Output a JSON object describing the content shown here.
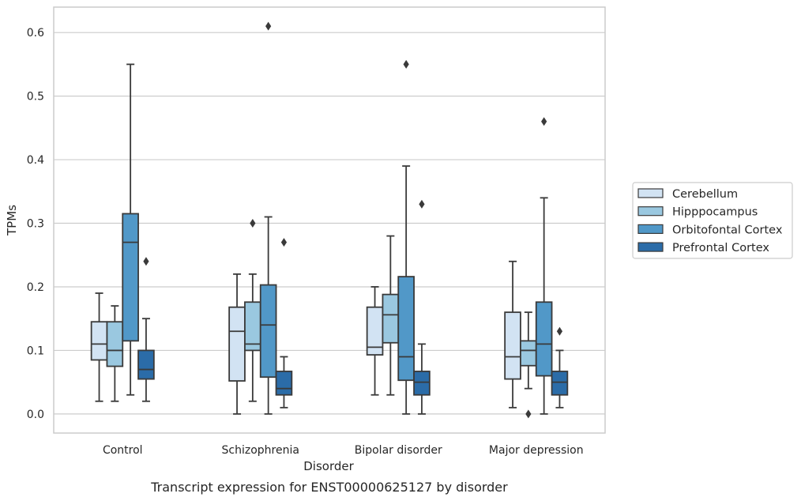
{
  "chart_data": {
    "type": "box",
    "title": "",
    "caption": "Transcript expression for ENST00000625127 by disorder",
    "xlabel": "Disorder",
    "ylabel": "TPMs",
    "ylim": [
      -0.03,
      0.64
    ],
    "yticks": [
      "0.0",
      "0.1",
      "0.2",
      "0.3",
      "0.4",
      "0.5",
      "0.6"
    ],
    "grid": true,
    "legend_position": "right",
    "categories": [
      "Control",
      "Schizophrenia",
      "Bipolar disorder",
      "Major depression"
    ],
    "series": [
      {
        "name": "Cerebellum",
        "color": "#d2e3f3",
        "boxes": [
          {
            "q1": 0.085,
            "median": 0.11,
            "q3": 0.145,
            "whisker_low": 0.02,
            "whisker_high": 0.19,
            "outliers": []
          },
          {
            "q1": 0.052,
            "median": 0.13,
            "q3": 0.168,
            "whisker_low": 0.0,
            "whisker_high": 0.22,
            "outliers": []
          },
          {
            "q1": 0.093,
            "median": 0.105,
            "q3": 0.168,
            "whisker_low": 0.03,
            "whisker_high": 0.2,
            "outliers": []
          },
          {
            "q1": 0.055,
            "median": 0.09,
            "q3": 0.16,
            "whisker_low": 0.01,
            "whisker_high": 0.24,
            "outliers": []
          }
        ]
      },
      {
        "name": "Hipppocampus",
        "color": "#9ac8e0",
        "boxes": [
          {
            "q1": 0.075,
            "median": 0.1,
            "q3": 0.145,
            "whisker_low": 0.02,
            "whisker_high": 0.17,
            "outliers": []
          },
          {
            "q1": 0.1,
            "median": 0.11,
            "q3": 0.176,
            "whisker_low": 0.02,
            "whisker_high": 0.22,
            "outliers": [
              0.3
            ]
          },
          {
            "q1": 0.112,
            "median": 0.156,
            "q3": 0.188,
            "whisker_low": 0.03,
            "whisker_high": 0.28,
            "outliers": []
          },
          {
            "q1": 0.076,
            "median": 0.1,
            "q3": 0.115,
            "whisker_low": 0.04,
            "whisker_high": 0.16,
            "outliers": [
              0.0
            ]
          }
        ]
      },
      {
        "name": "Orbitofontal Cortex",
        "color": "#5198c8",
        "boxes": [
          {
            "q1": 0.115,
            "median": 0.27,
            "q3": 0.315,
            "whisker_low": 0.03,
            "whisker_high": 0.55,
            "outliers": []
          },
          {
            "q1": 0.058,
            "median": 0.14,
            "q3": 0.203,
            "whisker_low": 0.0,
            "whisker_high": 0.31,
            "outliers": [
              0.61
            ]
          },
          {
            "q1": 0.053,
            "median": 0.09,
            "q3": 0.216,
            "whisker_low": 0.0,
            "whisker_high": 0.39,
            "outliers": [
              0.55
            ]
          },
          {
            "q1": 0.06,
            "median": 0.11,
            "q3": 0.176,
            "whisker_low": 0.0,
            "whisker_high": 0.34,
            "outliers": [
              0.46
            ]
          }
        ]
      },
      {
        "name": "Prefrontal Cortex",
        "color": "#2b6ca8",
        "boxes": [
          {
            "q1": 0.055,
            "median": 0.07,
            "q3": 0.1,
            "whisker_low": 0.02,
            "whisker_high": 0.15,
            "outliers": [
              0.24
            ]
          },
          {
            "q1": 0.03,
            "median": 0.04,
            "q3": 0.067,
            "whisker_low": 0.01,
            "whisker_high": 0.09,
            "outliers": [
              0.27
            ]
          },
          {
            "q1": 0.03,
            "median": 0.05,
            "q3": 0.067,
            "whisker_low": 0.0,
            "whisker_high": 0.11,
            "outliers": [
              0.33
            ]
          },
          {
            "q1": 0.03,
            "median": 0.05,
            "q3": 0.067,
            "whisker_low": 0.01,
            "whisker_high": 0.1,
            "outliers": [
              0.13
            ]
          }
        ]
      }
    ]
  }
}
